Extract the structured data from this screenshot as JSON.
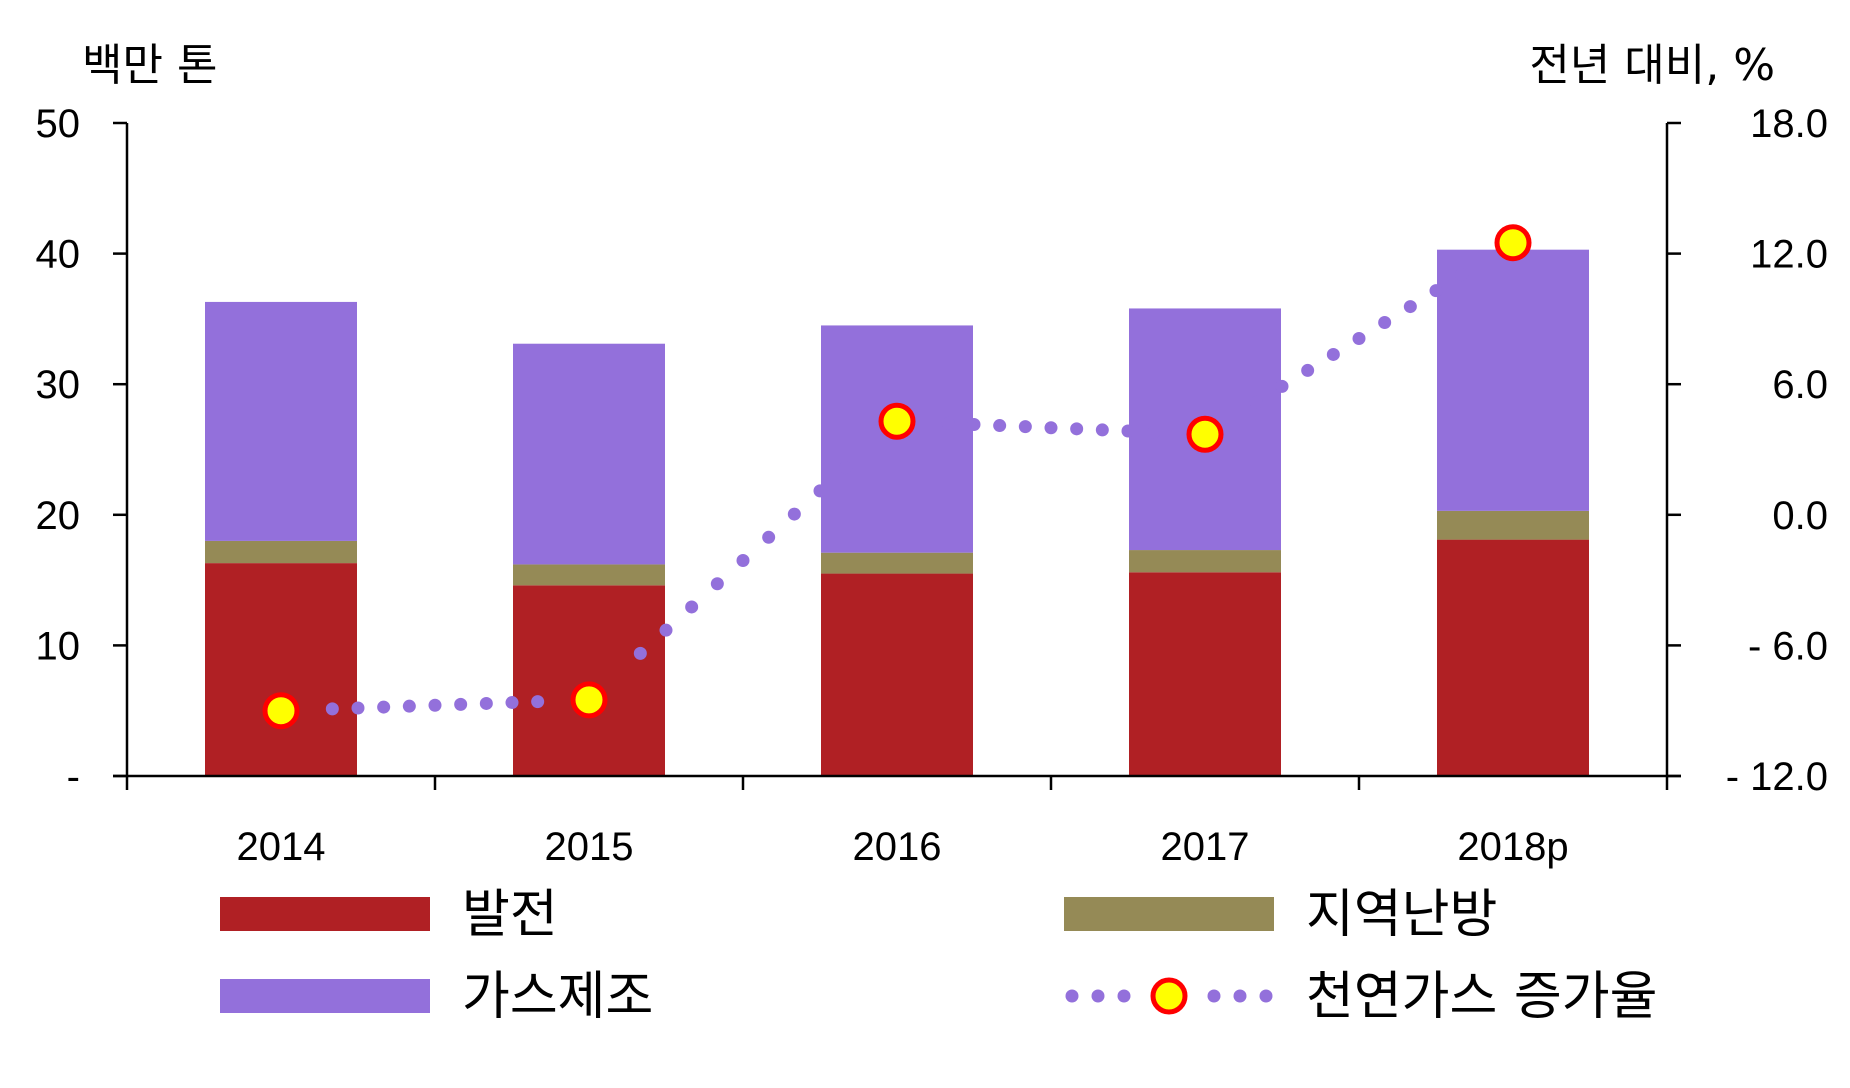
{
  "chart_data": {
    "type": "bar",
    "stacked": true,
    "categories": [
      "2014",
      "2015",
      "2016",
      "2017",
      "2018p"
    ],
    "series": [
      {
        "name": "발전",
        "values": [
          16.3,
          14.6,
          15.5,
          15.6,
          18.1
        ],
        "color": "#B02024",
        "axis": "left"
      },
      {
        "name": "지역난방",
        "values": [
          1.7,
          1.6,
          1.6,
          1.7,
          2.2
        ],
        "color": "#958A56",
        "axis": "left"
      },
      {
        "name": "가스제조",
        "values": [
          18.3,
          16.9,
          17.4,
          18.5,
          20.0
        ],
        "color": "#9370DB",
        "axis": "left"
      }
    ],
    "line_series": {
      "name": "천연가스 증가율",
      "values": [
        -9.0,
        -8.5,
        4.3,
        3.7,
        12.5
      ],
      "line_color": "#9370DB",
      "marker_fill": "#FFFF00",
      "marker_edge": "#FF0000",
      "axis": "right",
      "style": "dotted"
    },
    "left_axis": {
      "unit": "백만 톤",
      "ylim": [
        0,
        50
      ],
      "ticks": [
        0,
        10,
        20,
        30,
        40,
        50
      ],
      "tick_labels": [
        "-",
        "10",
        "20",
        "30",
        "40",
        "50"
      ]
    },
    "right_axis": {
      "unit": "전년 대비, %",
      "ylim": [
        -12,
        18
      ],
      "ticks": [
        -12,
        -6,
        0,
        6,
        12,
        18
      ],
      "tick_labels": [
        "- 12.0",
        "- 6.0",
        "0.0",
        "6.0",
        "12.0",
        "18.0"
      ]
    },
    "legend": {
      "placement": "bottom",
      "items": [
        "발전",
        "지역난방",
        "가스제조",
        "천연가스 증가율"
      ]
    },
    "grid": false
  }
}
